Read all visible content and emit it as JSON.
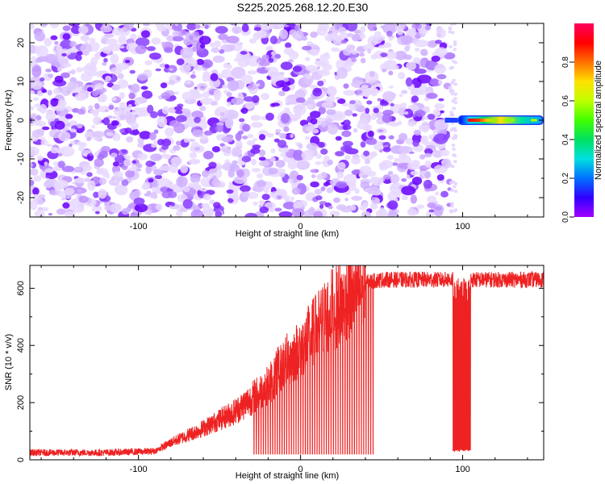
{
  "title": "S225.2025.268.12.20.E30",
  "chart_data": [
    {
      "type": "heatmap",
      "xlabel": "Height of straight line (km)",
      "ylabel": "Frequency (Hz)",
      "xlim": [
        -167,
        150
      ],
      "ylim": [
        -25,
        25
      ],
      "xticks": [
        -100,
        0,
        100
      ],
      "yticks": [
        -20,
        -10,
        0,
        10,
        20
      ],
      "grid": false,
      "colorbar": {
        "label": "Normalized spectral amplitude",
        "ticks": [
          0.0,
          0.2,
          0.4,
          0.6,
          0.8
        ],
        "range": [
          0,
          1
        ],
        "colormap": [
          "#a100ff",
          "#3000ff",
          "#0070ff",
          "#00e0e0",
          "#00e060",
          "#40ff00",
          "#c0ff00",
          "#ffe000",
          "#ff7000",
          "#ff0000",
          "#ff0060"
        ]
      },
      "regions": [
        {
          "description": "broadband noise",
          "x_range": [
            -167,
            88
          ],
          "freq_range": [
            -25,
            25
          ],
          "amplitude": 0.05
        },
        {
          "description": "narrow carrier line",
          "x_range": [
            97,
            150
          ],
          "freq": 0,
          "amplitude_peak": 1.0
        }
      ]
    },
    {
      "type": "line",
      "xlabel": "Height of straight line (km)",
      "ylabel": "SNR (10 * v/v)",
      "xlim": [
        -167,
        150
      ],
      "ylim": [
        0,
        680
      ],
      "xticks": [
        -100,
        0,
        100
      ],
      "yticks": [
        0,
        200,
        400,
        600
      ],
      "grid": false,
      "color": "#ee2222",
      "envelope": [
        {
          "x": -167,
          "y": 25
        },
        {
          "x": -120,
          "y": 25
        },
        {
          "x": -90,
          "y": 30
        },
        {
          "x": -80,
          "y": 60
        },
        {
          "x": -60,
          "y": 110
        },
        {
          "x": -40,
          "y": 170
        },
        {
          "x": -20,
          "y": 260
        },
        {
          "x": -10,
          "y": 340
        },
        {
          "x": 0,
          "y": 390
        },
        {
          "x": 10,
          "y": 460
        },
        {
          "x": 20,
          "y": 530
        },
        {
          "x": 30,
          "y": 580
        },
        {
          "x": 40,
          "y": 620
        },
        {
          "x": 50,
          "y": 630
        },
        {
          "x": 90,
          "y": 630
        },
        {
          "x": 150,
          "y": 630
        }
      ],
      "dropouts": [
        {
          "x_range": [
            -30,
            45
          ],
          "depth_to": 20
        },
        {
          "x_range": [
            94,
            105
          ],
          "depth_to": 30
        }
      ]
    }
  ]
}
